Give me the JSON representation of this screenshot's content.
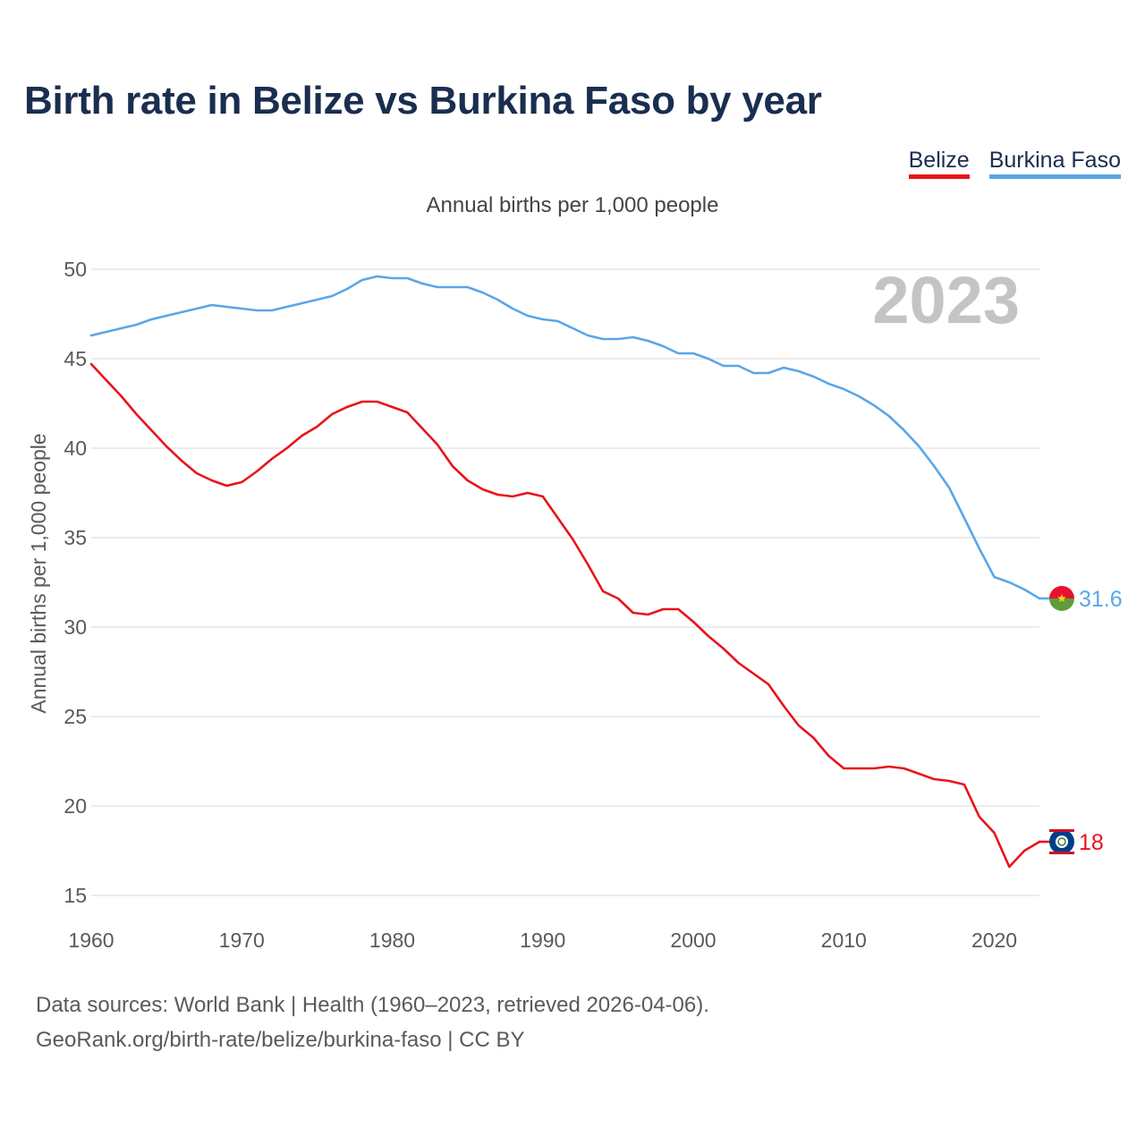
{
  "title": "Birth rate in Belize vs Burkina Faso by year",
  "subtitle": "Annual births per 1,000 people",
  "legend": [
    {
      "label": "Belize",
      "color": "#e8141b"
    },
    {
      "label": "Burkina Faso",
      "color": "#5aa6e8"
    }
  ],
  "footer": {
    "line1": "Data sources: World Bank | Health (1960–2023, retrieved 2026-04-06).",
    "line2": "GeoRank.org/birth-rate/belize/burkina-faso | CC BY"
  },
  "chart_data": {
    "type": "line",
    "title": "Birth rate in Belize vs Burkina Faso by year",
    "ylabel": "Annual births per 1,000 people",
    "xlabel": "",
    "year_label": "2023",
    "xlim": [
      1960,
      2023
    ],
    "ylim": [
      15,
      51.5
    ],
    "x_ticks": [
      1960,
      1970,
      1980,
      1990,
      2000,
      2010,
      2020
    ],
    "y_ticks": [
      15,
      20,
      25,
      30,
      35,
      40,
      45,
      50
    ],
    "grid": true,
    "x": [
      1960,
      1961,
      1962,
      1963,
      1964,
      1965,
      1966,
      1967,
      1968,
      1969,
      1970,
      1971,
      1972,
      1973,
      1974,
      1975,
      1976,
      1977,
      1978,
      1979,
      1980,
      1981,
      1982,
      1983,
      1984,
      1985,
      1986,
      1987,
      1988,
      1989,
      1990,
      1991,
      1992,
      1993,
      1994,
      1995,
      1996,
      1997,
      1998,
      1999,
      2000,
      2001,
      2002,
      2003,
      2004,
      2005,
      2006,
      2007,
      2008,
      2009,
      2010,
      2011,
      2012,
      2013,
      2014,
      2015,
      2016,
      2017,
      2018,
      2019,
      2020,
      2021,
      2022,
      2023
    ],
    "series": [
      {
        "name": "Belize",
        "color": "#e8141b",
        "end_label": "18",
        "flag": "belize",
        "values": [
          44.7,
          43.8,
          42.9,
          41.9,
          41.0,
          40.1,
          39.3,
          38.6,
          38.2,
          37.9,
          38.1,
          38.7,
          39.4,
          40.0,
          40.7,
          41.2,
          41.9,
          42.3,
          42.6,
          42.6,
          42.3,
          42.0,
          41.1,
          40.2,
          39.0,
          38.2,
          37.7,
          37.4,
          37.3,
          37.5,
          37.3,
          36.1,
          34.9,
          33.5,
          32.0,
          31.6,
          30.8,
          30.7,
          31.0,
          31.0,
          30.3,
          29.5,
          28.8,
          28.0,
          27.4,
          26.8,
          25.6,
          24.5,
          23.8,
          22.8,
          22.1,
          22.1,
          22.1,
          22.2,
          22.1,
          21.8,
          21.5,
          21.4,
          21.2,
          19.4,
          18.5,
          16.6,
          17.5,
          18.0
        ]
      },
      {
        "name": "Burkina Faso",
        "color": "#5aa6e8",
        "end_label": "31.6",
        "flag": "burkina-faso",
        "values": [
          46.3,
          46.5,
          46.7,
          46.9,
          47.2,
          47.4,
          47.6,
          47.8,
          48.0,
          47.9,
          47.8,
          47.7,
          47.7,
          47.9,
          48.1,
          48.3,
          48.5,
          48.9,
          49.4,
          49.6,
          49.5,
          49.5,
          49.2,
          49.0,
          49.0,
          49.0,
          48.7,
          48.3,
          47.8,
          47.4,
          47.2,
          47.1,
          46.7,
          46.3,
          46.1,
          46.1,
          46.2,
          46.0,
          45.7,
          45.3,
          45.3,
          45.0,
          44.6,
          44.6,
          44.2,
          44.2,
          44.5,
          44.3,
          44.0,
          43.6,
          43.3,
          42.9,
          42.4,
          41.8,
          41.0,
          40.1,
          39.0,
          37.8,
          36.1,
          34.4,
          32.8,
          32.5,
          32.1,
          31.6
        ]
      }
    ]
  }
}
